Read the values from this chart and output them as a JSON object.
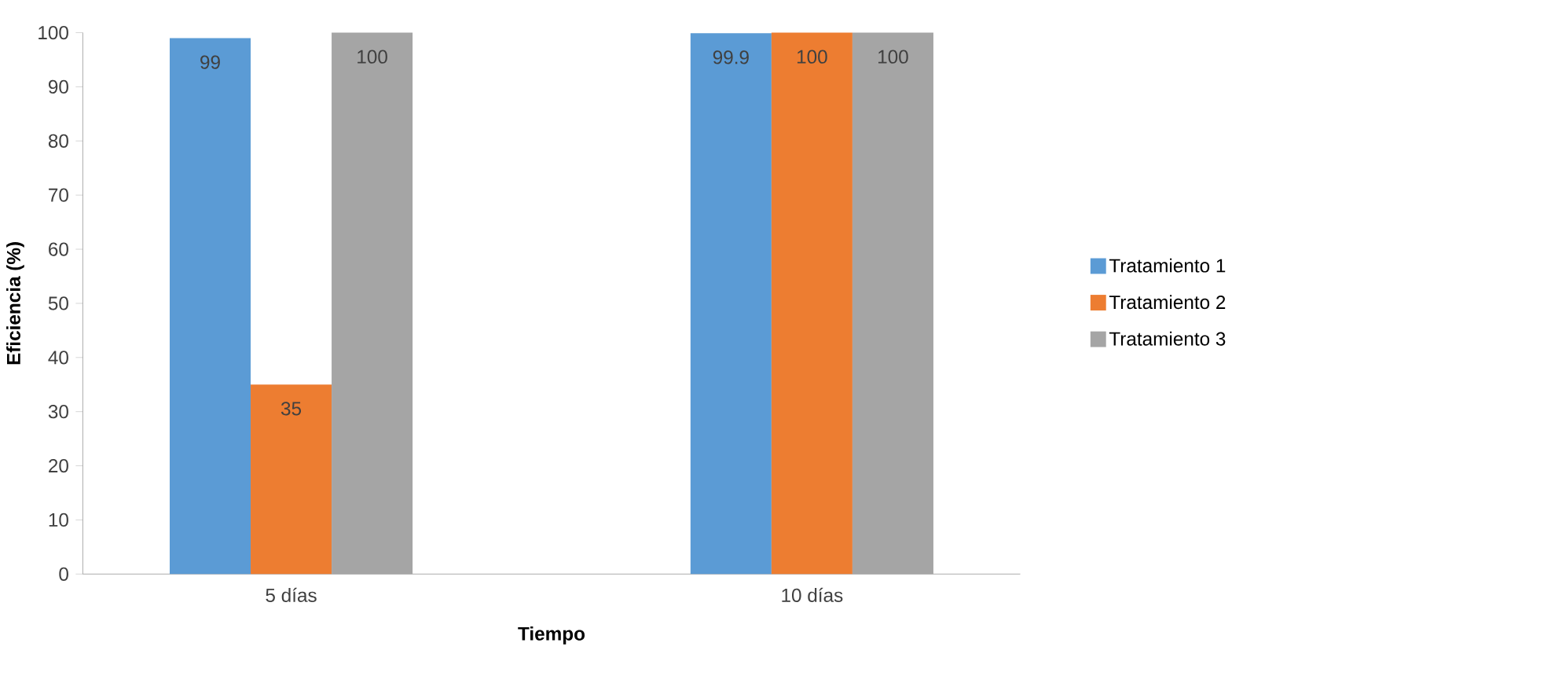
{
  "chart_data": {
    "type": "bar",
    "xlabel": "Tiempo",
    "ylabel": "Eficiencia (%)",
    "categories": [
      "5 días",
      "10 días"
    ],
    "series": [
      {
        "name": "Tratamiento 1",
        "color": "#5b9bd5",
        "values": [
          99,
          99.9
        ]
      },
      {
        "name": "Tratamiento 2",
        "color": "#ed7d31",
        "values": [
          35,
          100
        ]
      },
      {
        "name": "Tratamiento 3",
        "color": "#a5a5a5",
        "values": [
          100,
          100
        ]
      }
    ],
    "ylim": [
      0,
      100
    ],
    "yticks": [
      0,
      10,
      20,
      30,
      40,
      50,
      60,
      70,
      80,
      90,
      100
    ],
    "data_labels": true,
    "legend": "right",
    "grid": false
  }
}
